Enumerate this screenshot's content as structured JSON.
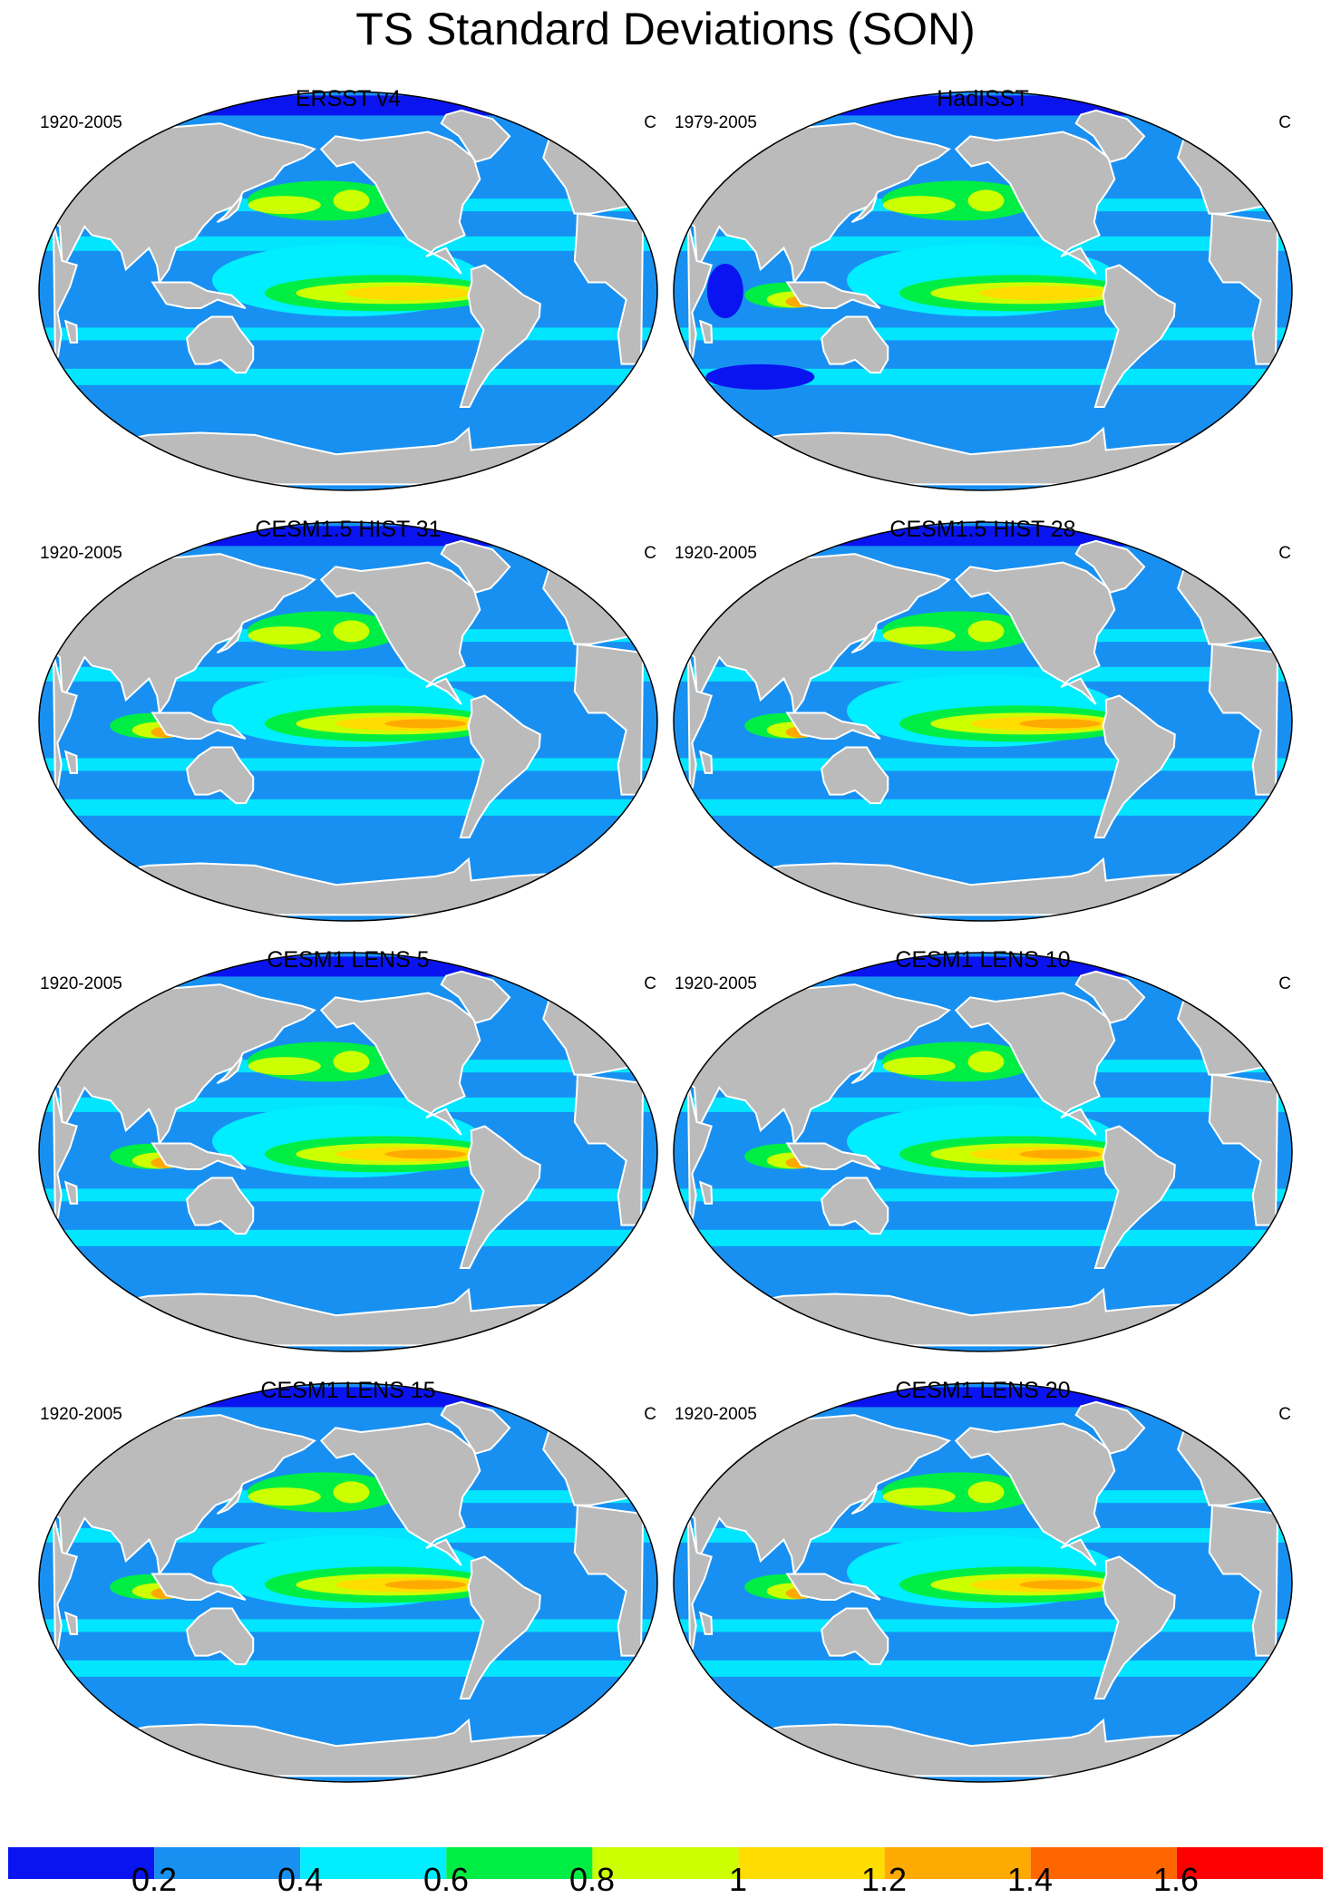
{
  "figure": {
    "title": "TS Standard Deviations (SON)"
  },
  "panels": [
    {
      "title": "ERSST v4",
      "period": "1920-2005",
      "units": "C",
      "style": "obs"
    },
    {
      "title": "HadISST",
      "period": "1979-2005",
      "units": "C",
      "style": "had"
    },
    {
      "title": "CESM1.5 HIST 31",
      "period": "1920-2005",
      "units": "C",
      "style": "model"
    },
    {
      "title": "CESM1.5 HIST 28",
      "period": "1920-2005",
      "units": "C",
      "style": "model"
    },
    {
      "title": "CESM1 LENS 5",
      "period": "1920-2005",
      "units": "C",
      "style": "model"
    },
    {
      "title": "CESM1 LENS 10",
      "period": "1920-2005",
      "units": "C",
      "style": "model"
    },
    {
      "title": "CESM1 LENS 15",
      "period": "1920-2005",
      "units": "C",
      "style": "model"
    },
    {
      "title": "CESM1 LENS 20",
      "period": "1920-2005",
      "units": "C",
      "style": "model"
    }
  ],
  "colorbar": {
    "labels": [
      "0.2",
      "0.4",
      "0.6",
      "0.8",
      "1",
      "1.2",
      "1.4",
      "1.6"
    ],
    "levels": [
      0.2,
      0.4,
      0.6,
      0.8,
      1.0,
      1.2,
      1.4,
      1.6
    ],
    "colors": [
      "#0a14f0",
      "#1890f2",
      "#00eeff",
      "#00ee44",
      "#ccff00",
      "#ffdd00",
      "#ffaa00",
      "#ff6600",
      "#ff0000"
    ]
  },
  "colors": {
    "land": "#bbbbbb",
    "coast": "#ffffff",
    "outline": "#000000"
  }
}
